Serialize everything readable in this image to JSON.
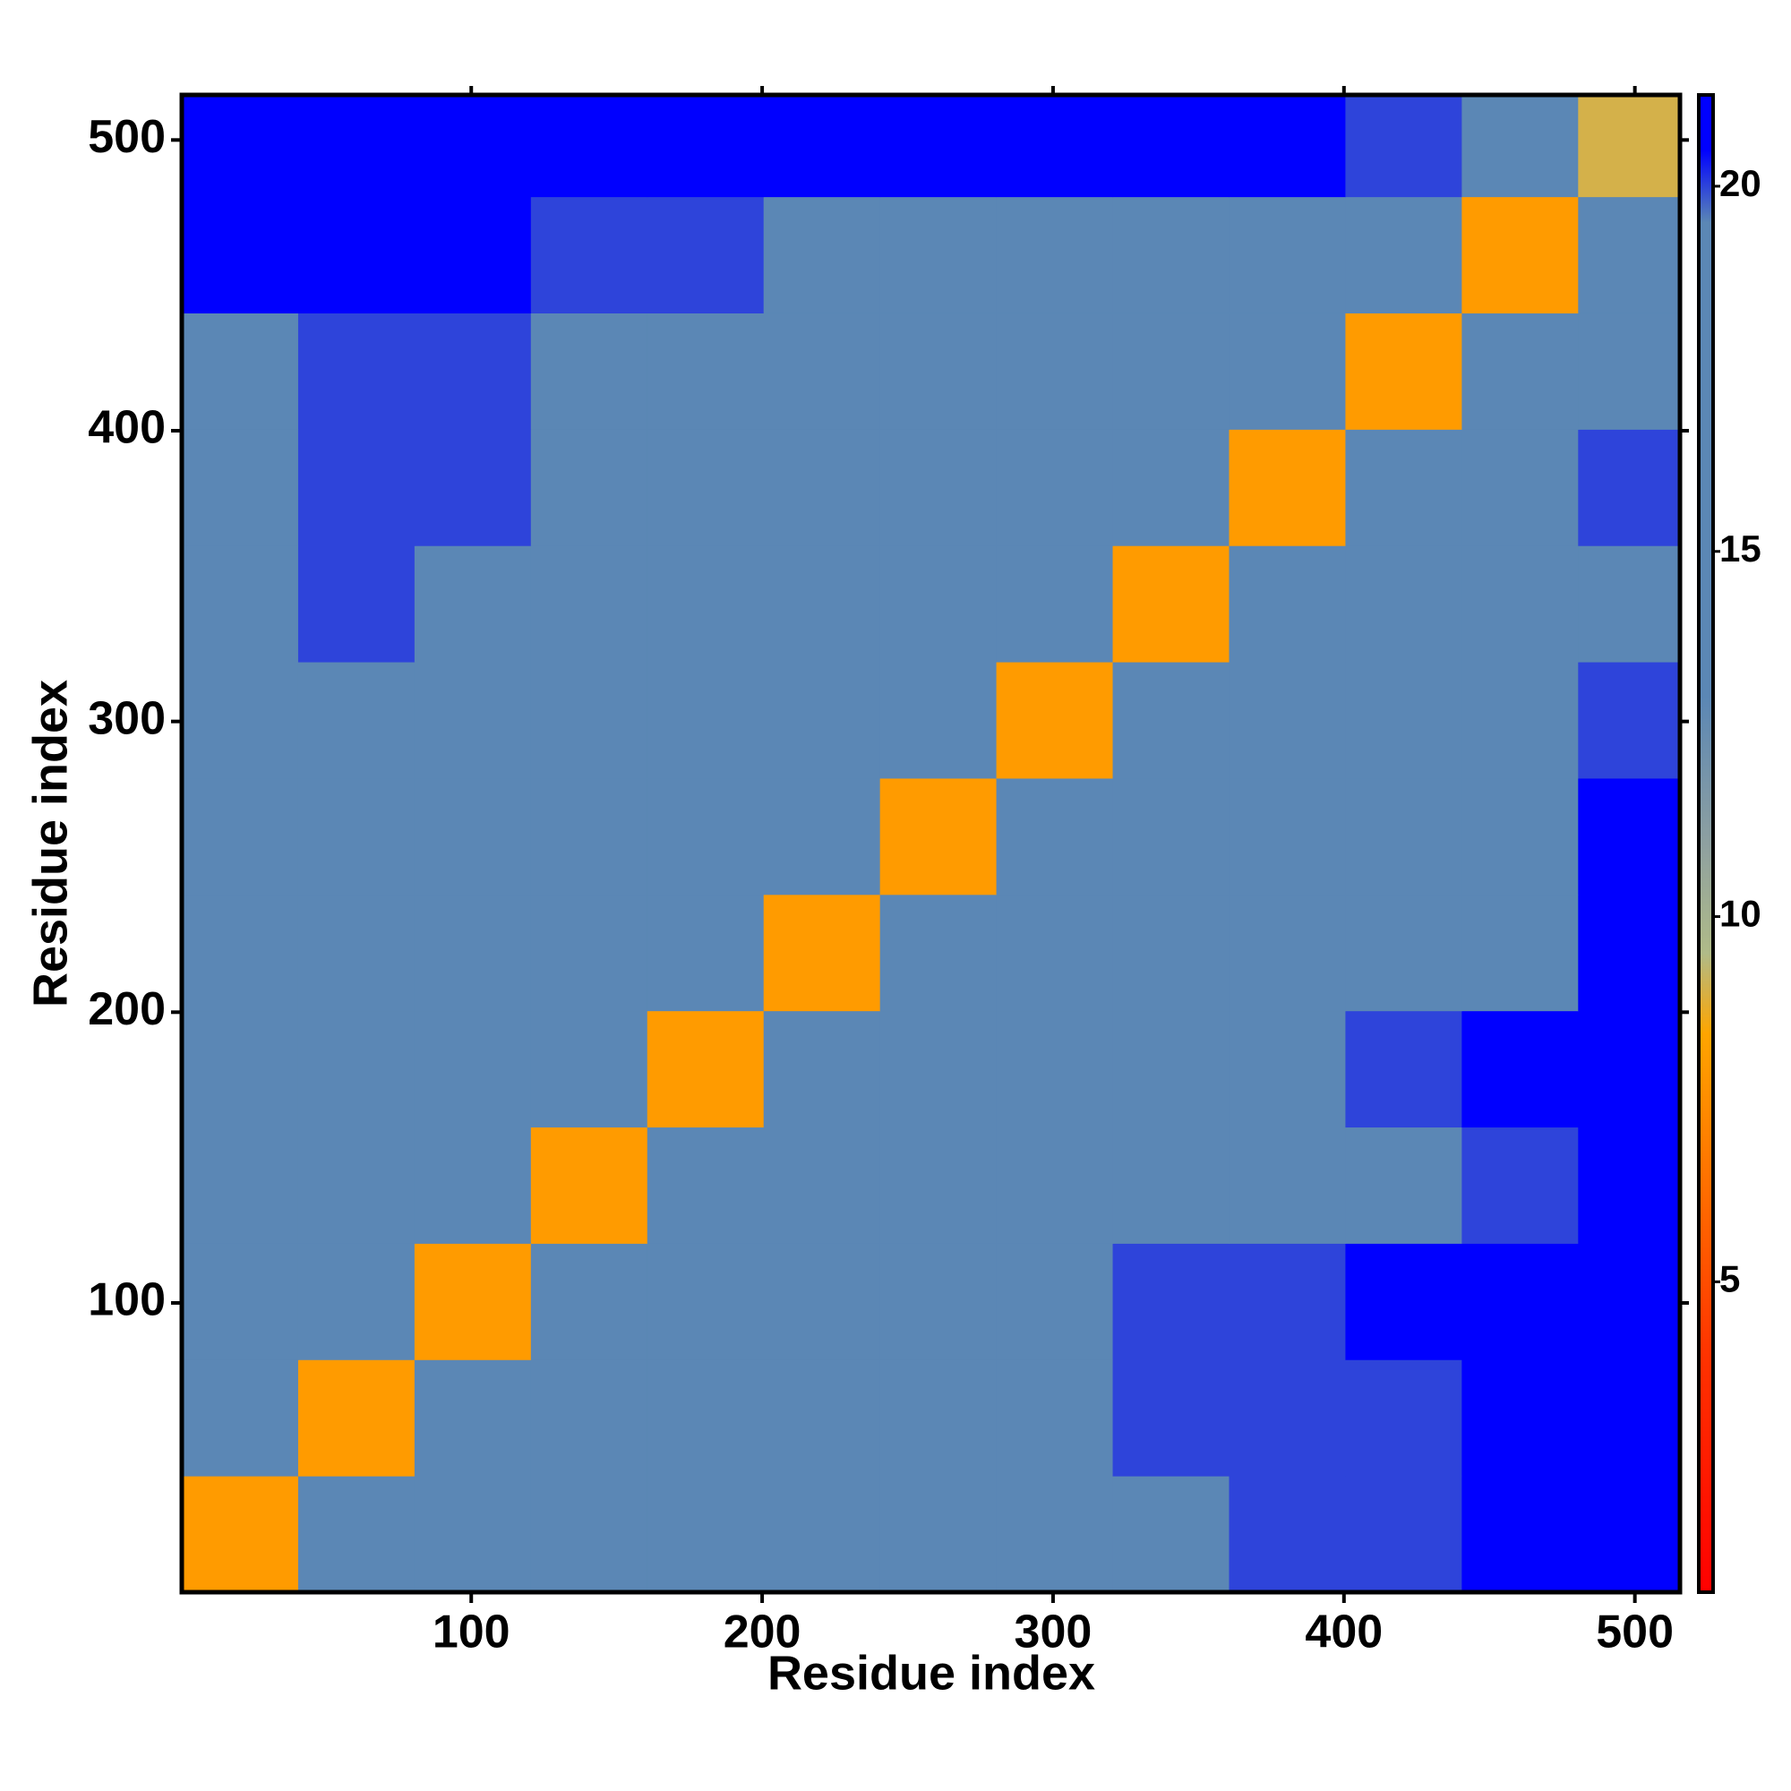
{
  "chart_data": {
    "type": "heatmap",
    "x_label": "Residue index",
    "y_label": "Residue index",
    "xbins": [
      0.5,
      40.5,
      80.5,
      120.5,
      160.5,
      200.5,
      240.5,
      280.5,
      320.5,
      360.5,
      400.5,
      440.5,
      480.5,
      515.5
    ],
    "ybins": [
      0.5,
      40.5,
      80.5,
      120.5,
      160.5,
      200.5,
      240.5,
      280.5,
      320.5,
      360.5,
      400.5,
      440.5,
      480.5,
      515.5
    ],
    "z": [
      [
        8,
        13,
        15,
        16,
        16,
        16,
        16,
        17,
        19,
        20,
        20,
        21,
        23
      ],
      [
        13,
        8,
        13,
        15,
        16,
        16,
        17,
        18,
        20,
        20,
        20,
        21,
        23
      ],
      [
        15,
        13,
        8,
        13,
        15,
        16,
        17,
        18,
        20,
        20,
        21,
        21,
        23
      ],
      [
        15,
        14,
        13,
        8,
        14,
        15,
        16,
        16,
        18,
        19,
        19,
        20,
        22
      ],
      [
        16,
        15,
        14,
        14,
        8,
        13,
        15,
        16,
        18,
        19,
        20,
        21,
        23
      ],
      [
        16,
        16,
        15,
        14,
        13,
        8,
        13,
        14,
        16,
        17,
        18,
        19,
        22
      ],
      [
        16,
        16,
        16,
        15,
        15,
        13,
        8,
        13,
        14,
        14,
        15,
        16,
        21
      ],
      [
        16,
        16,
        16,
        15,
        15,
        14,
        13,
        8,
        13,
        14,
        14,
        16,
        20
      ],
      [
        19,
        20,
        19,
        19,
        19,
        17,
        15,
        14,
        8,
        13,
        14,
        15,
        19
      ],
      [
        19,
        20,
        20,
        19,
        19,
        18,
        15,
        15,
        13,
        8,
        13,
        15,
        20
      ],
      [
        19,
        20,
        20,
        19,
        19,
        17,
        16,
        16,
        15,
        13,
        8,
        13,
        19
      ],
      [
        21,
        21,
        21,
        20,
        20,
        19,
        18,
        17,
        18,
        16,
        13,
        8,
        15
      ],
      [
        23,
        23,
        23,
        23,
        23,
        23,
        22,
        22,
        22,
        21,
        20,
        15,
        9
      ]
    ],
    "xlim": [
      0.5,
      515.5
    ],
    "ylim": [
      0.5,
      515.5
    ],
    "xticks": [
      100,
      200,
      300,
      400,
      500
    ],
    "yticks": [
      100,
      200,
      300,
      400,
      500
    ],
    "colorbar": {
      "lim": [
        0.75,
        21.25
      ],
      "ticks": [
        5,
        10,
        15,
        20
      ],
      "stops": [
        {
          "value": 0.75,
          "color": "#ff0000"
        },
        {
          "value": 4,
          "color": "#ff3300"
        },
        {
          "value": 8.4,
          "color": "#ffa500"
        },
        {
          "value": 9.5,
          "color": "#b0bb88"
        },
        {
          "value": 11,
          "color": "#8ea0a0"
        },
        {
          "value": 13,
          "color": "#5b87b5"
        },
        {
          "value": 19.5,
          "color": "#5b87b5"
        },
        {
          "value": 20.5,
          "color": "#0000ff"
        },
        {
          "value": 21.25,
          "color": "#0000ff"
        }
      ]
    }
  }
}
